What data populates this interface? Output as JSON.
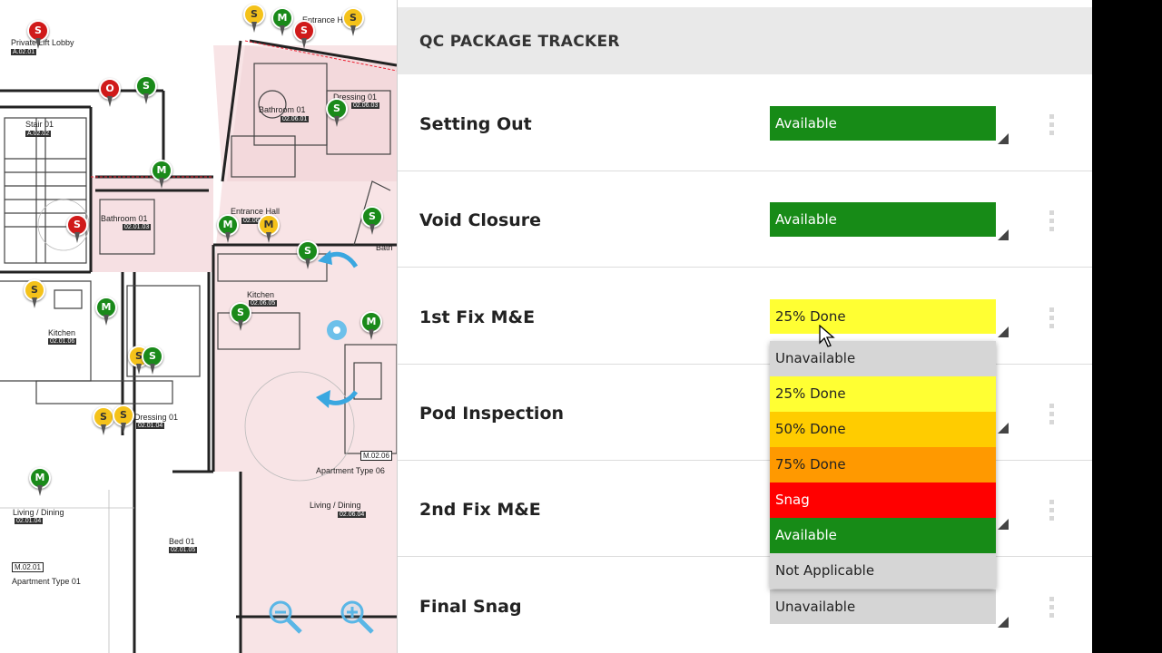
{
  "panel": {
    "title": "QC PACKAGE TRACKER",
    "rows": [
      {
        "label": "Setting Out",
        "status": "Available",
        "color": "#178b17"
      },
      {
        "label": "Void Closure",
        "status": "Available",
        "color": "#178b17"
      },
      {
        "label": "1st Fix M&E",
        "status": "25% Done",
        "color": "#ffff33"
      },
      {
        "label": "Pod Inspection",
        "status": "",
        "color": "#178b17"
      },
      {
        "label": "2nd Fix M&E",
        "status": "",
        "color": "#178b17"
      },
      {
        "label": "Final Snag",
        "status": "Unavailable",
        "color": "#d5d5d5"
      }
    ]
  },
  "dropdown": {
    "options": [
      "Unavailable",
      "25% Done",
      "50% Done",
      "75% Done",
      "Snag",
      "Available",
      "Not Applicable"
    ],
    "colors": [
      "#d6d6d6",
      "#ffff33",
      "#ffcc00",
      "#ff9900",
      "#ff0000",
      "#178b17",
      "#d6d6d6"
    ]
  },
  "plan": {
    "rooms": [
      {
        "label": "Private Lift Lobby",
        "code": "A.02.01"
      },
      {
        "label": "Stair 01",
        "code": "A.02.02"
      },
      {
        "label": "Bathroom 01",
        "code": "02.06.01"
      },
      {
        "label": "Dressing 01",
        "code": "02.06.03"
      },
      {
        "label": "Bathroom 01",
        "code": "02.01.03"
      },
      {
        "label": "Entrance Hall",
        "code": "02.06.02"
      },
      {
        "label": "Kitchen",
        "code": "02.06.05"
      },
      {
        "label": "Kitchen",
        "code": "02.01.06"
      },
      {
        "label": "Dressing 01",
        "code": "02.01.04"
      },
      {
        "label": "Living / Dining",
        "code": "02.01.04"
      },
      {
        "label": "Living / Dining",
        "code": "02.06.04"
      },
      {
        "label": "Bed 01",
        "code": "02.01.05"
      }
    ],
    "extra_labels": [
      "Entrance Hall",
      "Bath",
      "Apartment Type 06",
      "Apartment Type 01"
    ],
    "apartment_codes": [
      "M.02.06",
      "M.02.01"
    ],
    "pins": [
      "S",
      "M",
      "S",
      "S",
      "S",
      "O",
      "S",
      "S",
      "M",
      "S",
      "M",
      "M",
      "S",
      "S",
      "S",
      "M",
      "S",
      "M",
      "S",
      "S",
      "S",
      "S",
      "M"
    ],
    "pin_colors": {
      "green": "#1a8a1a",
      "red": "#d01a1a",
      "yellow": "#f4c21a"
    }
  }
}
